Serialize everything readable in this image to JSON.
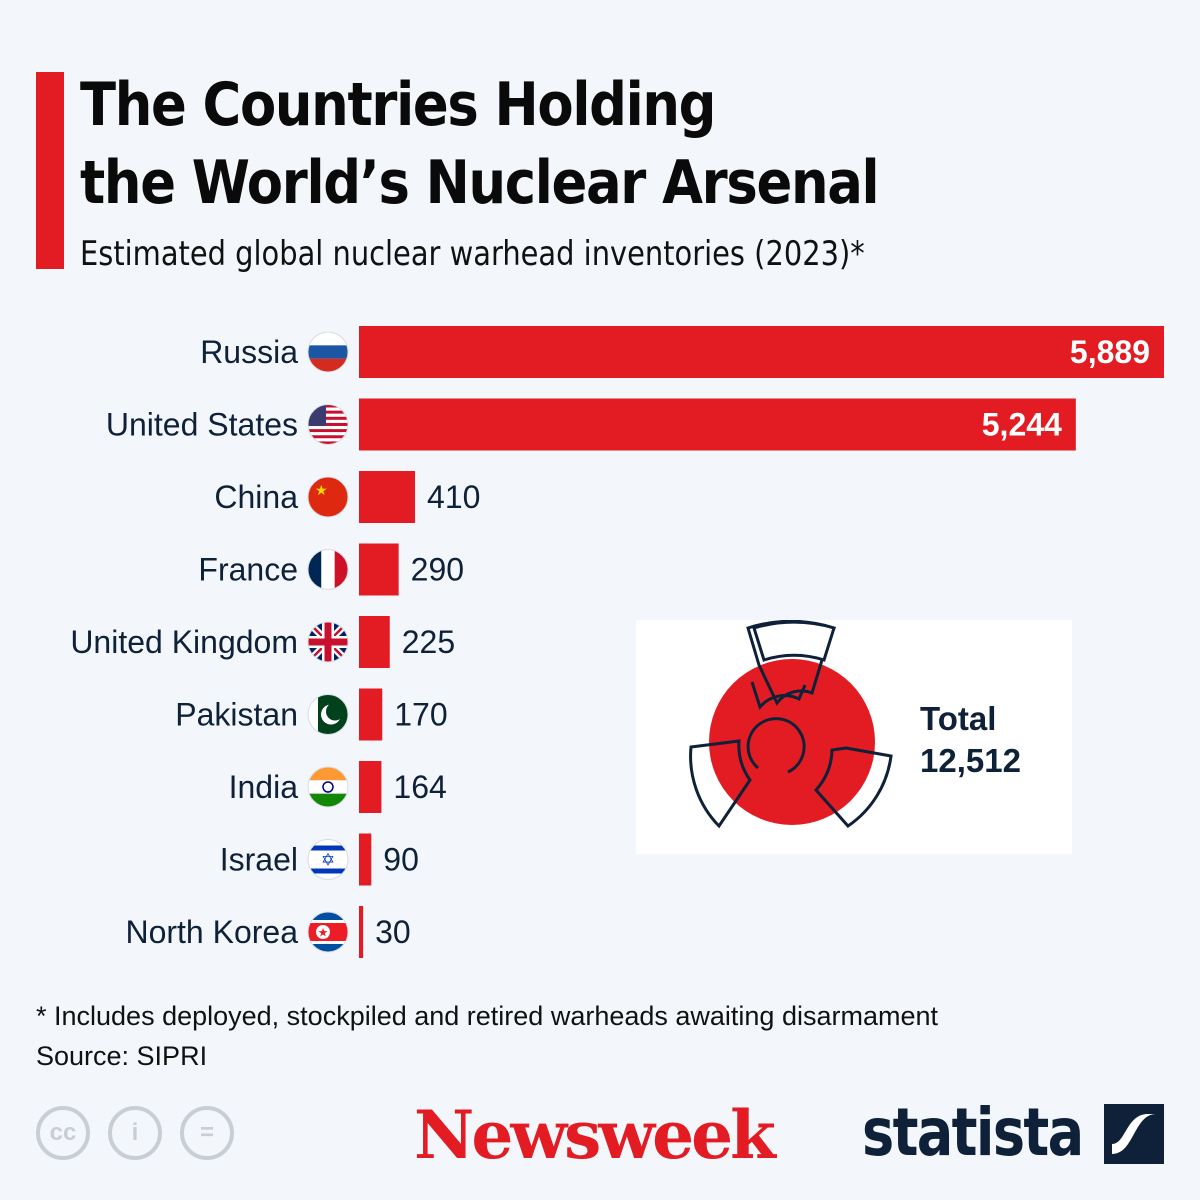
{
  "title_line1": "The Countries Holding",
  "title_line2": "the World’s Nuclear Arsenal",
  "subtitle": "Estimated global nuclear warhead inventories (2023)*",
  "colors": {
    "bar": "#e31b23",
    "text": "#0f2138",
    "background": "#f3f7fb"
  },
  "chart_data": {
    "type": "bar",
    "orientation": "horizontal",
    "title": "The Countries Holding the World’s Nuclear Arsenal",
    "subtitle": "Estimated global nuclear warhead inventories (2023)*",
    "categories": [
      "Russia",
      "United States",
      "China",
      "France",
      "United Kingdom",
      "Pakistan",
      "India",
      "Israel",
      "North Korea"
    ],
    "values": [
      5889,
      5244,
      410,
      290,
      225,
      170,
      164,
      90,
      30
    ],
    "labels": [
      "5,889",
      "5,244",
      "410",
      "290",
      "225",
      "170",
      "164",
      "90",
      "30"
    ],
    "flags": [
      "russia-flag-icon",
      "us-flag-icon",
      "china-flag-icon",
      "france-flag-icon",
      "uk-flag-icon",
      "pakistan-flag-icon",
      "india-flag-icon",
      "israel-flag-icon",
      "north-korea-flag-icon"
    ],
    "grid": false
  },
  "total": {
    "label": "Total",
    "value": "12,512",
    "icon": "radiation-icon"
  },
  "footnote": "* Includes deployed, stockpiled and retired warheads awaiting disarmament",
  "source": "Source: SIPRI",
  "license_icons": [
    "cc-icon",
    "attribution-icon",
    "no-derivatives-icon"
  ],
  "license_glyphs": [
    "cc",
    "i",
    "="
  ],
  "logos": {
    "newsweek": "Newsweek",
    "statista": "statista"
  }
}
